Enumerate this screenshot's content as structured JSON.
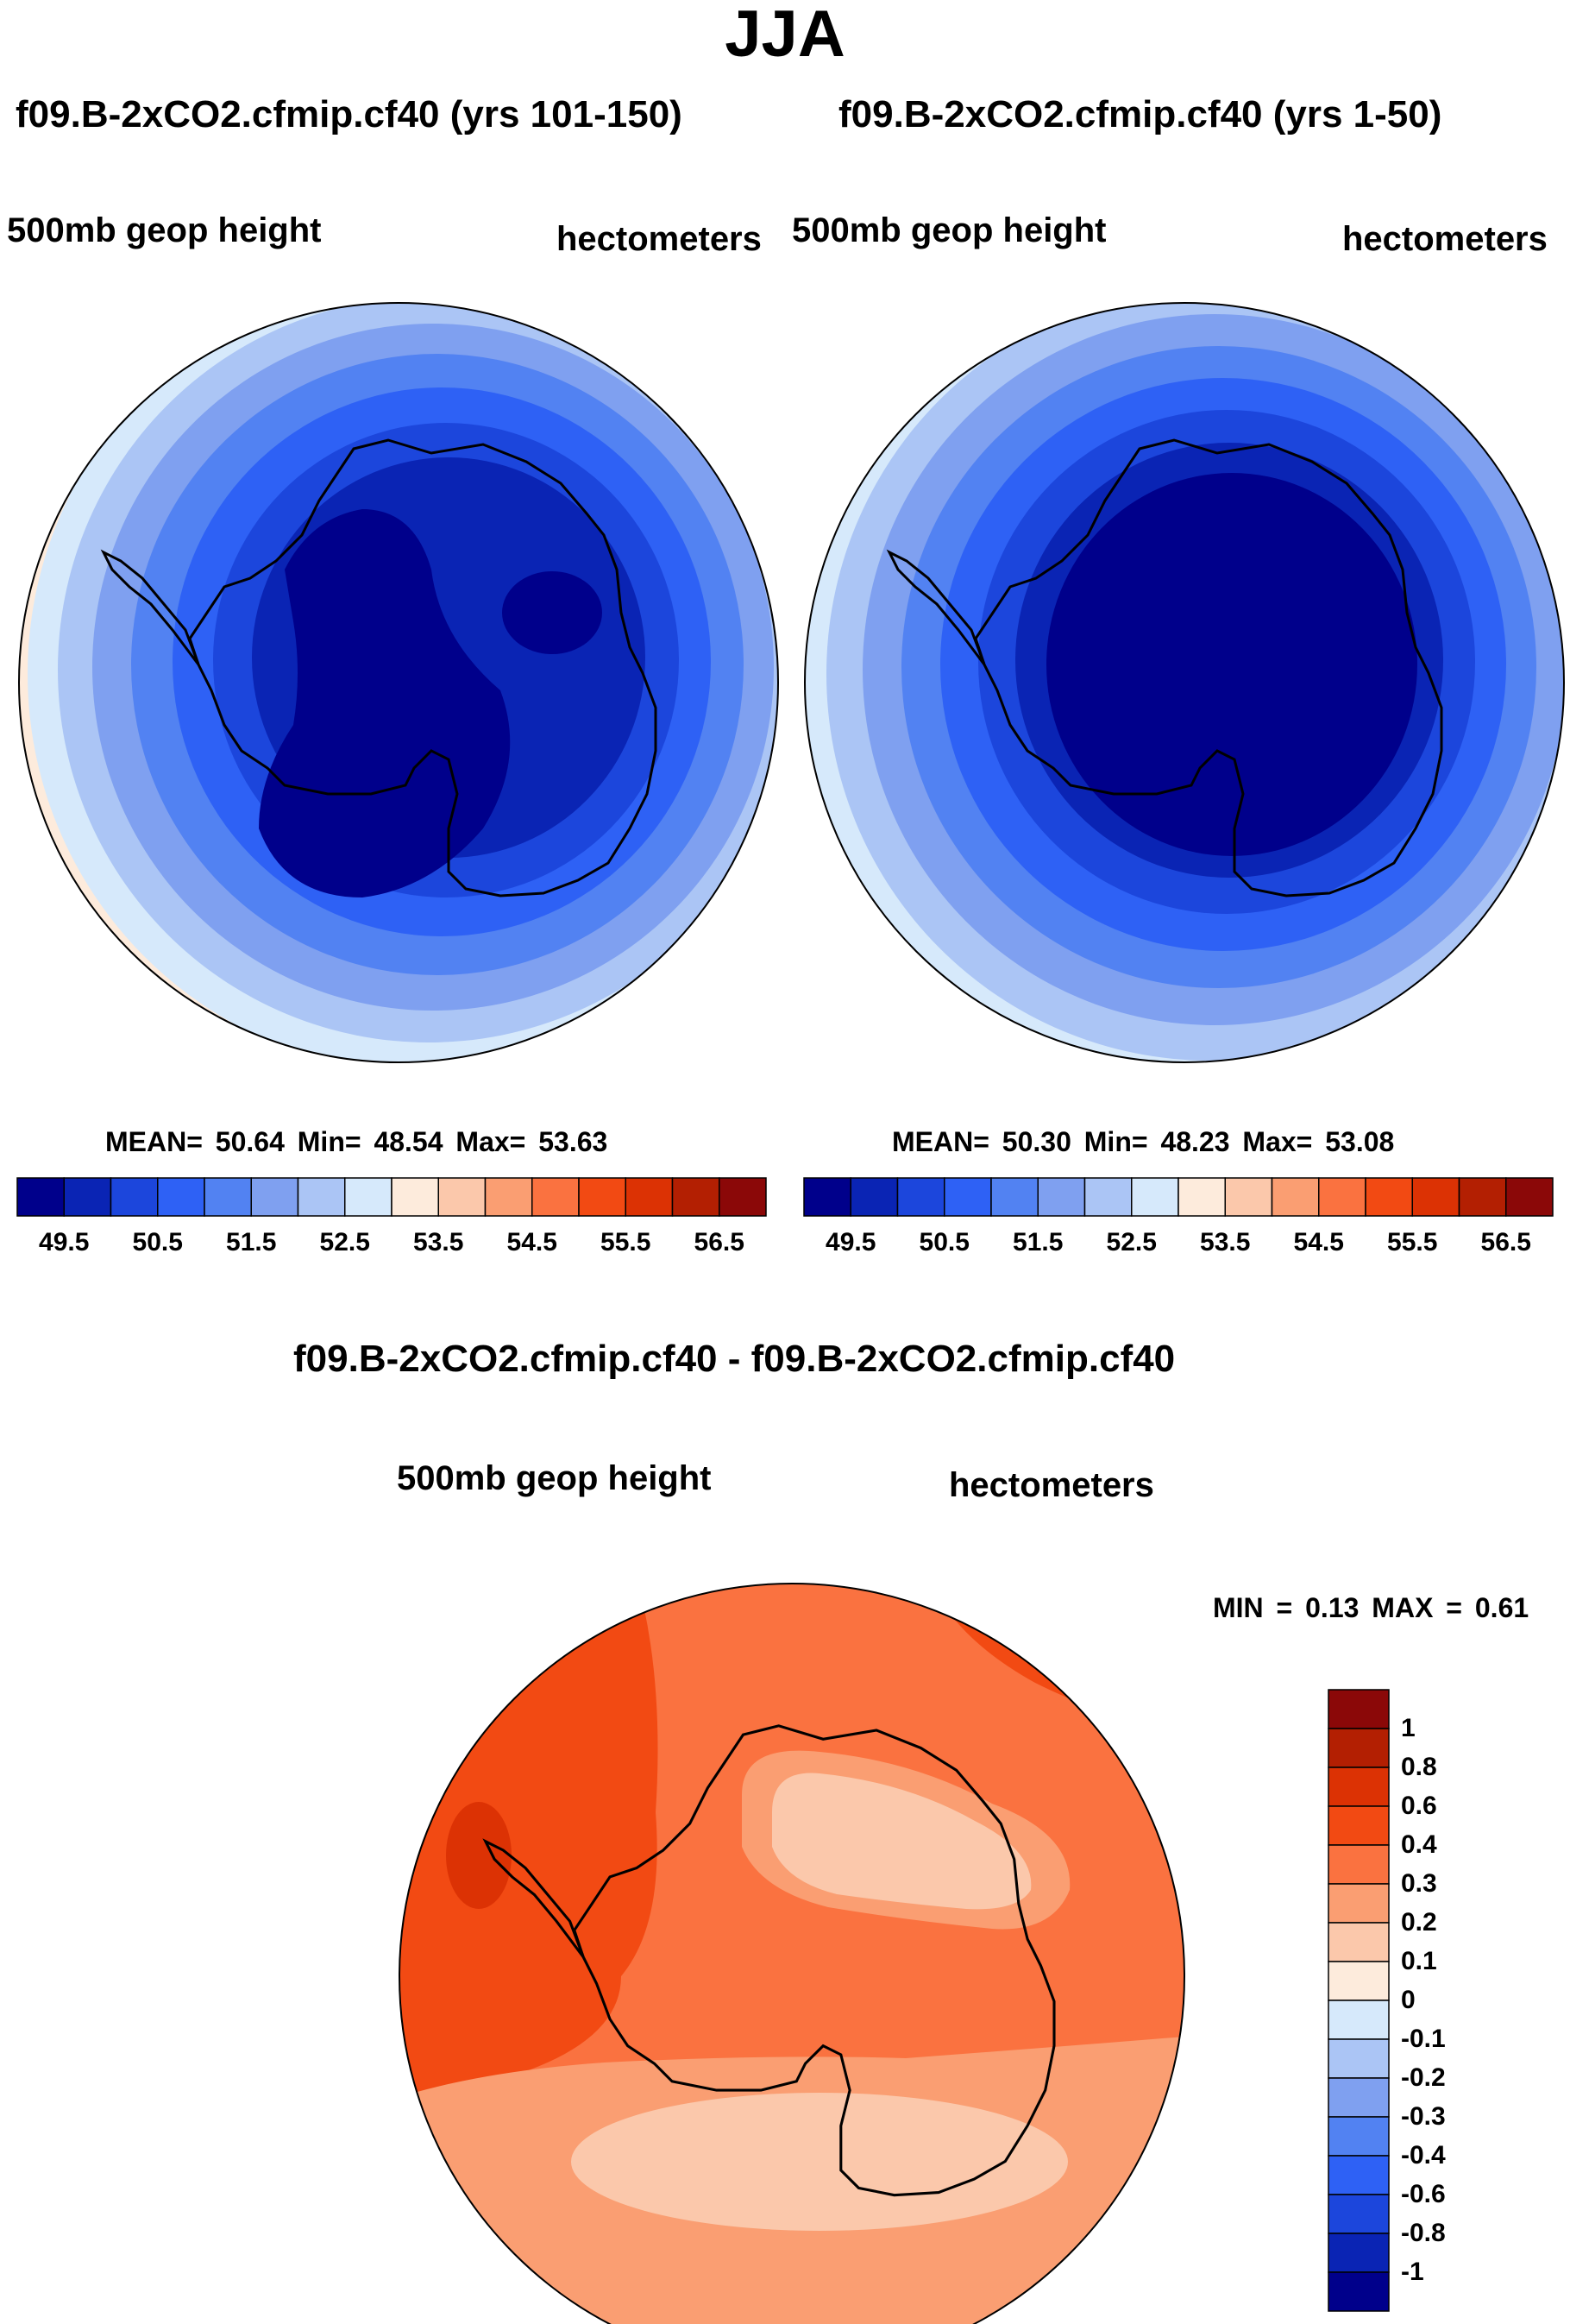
{
  "title": "JJA",
  "panels": [
    {
      "case_title": "f09.B-2xCO2.cfmip.cf40 (yrs 101-150)",
      "field_label": "500mb geop height",
      "units_label": "hectometers",
      "stats": {
        "mean_label": "MEAN=",
        "mean": "50.64",
        "min_label": "Min=",
        "min": "48.54",
        "max_label": "Max=",
        "max": "53.63"
      }
    },
    {
      "case_title": "f09.B-2xCO2.cfmip.cf40 (yrs 1-50)",
      "field_label": "500mb geop height",
      "units_label": "hectometers",
      "stats": {
        "mean_label": "MEAN=",
        "mean": "50.30",
        "min_label": "Min=",
        "min": "48.23",
        "max_label": "Max=",
        "max": "53.08"
      }
    },
    {
      "case_title": "f09.B-2xCO2.cfmip.cf40 - f09.B-2xCO2.cfmip.cf40",
      "field_label": "500mb geop height",
      "units_label": "hectometers",
      "stats": {
        "min_label": "MIN =",
        "min": "0.13",
        "max_label": "MAX =",
        "max": "0.61"
      }
    }
  ],
  "colorbar_fields": {
    "colors": [
      "#00008b",
      "#0a24b4",
      "#1c46dc",
      "#2e61f5",
      "#5282f2",
      "#7fa0f0",
      "#abc5f5",
      "#d6e9fb",
      "#fdebdc",
      "#fbc8ab",
      "#fa9e72",
      "#fa7240",
      "#f24a13",
      "#dc3204",
      "#b31f02",
      "#8b0808"
    ],
    "tick_labels": [
      "49.5",
      "50.5",
      "51.5",
      "52.5",
      "53.5",
      "54.5",
      "55.5",
      "56.5"
    ]
  },
  "colorbar_diff": {
    "colors": [
      "#00008b",
      "#0a24b4",
      "#1c46dc",
      "#2e61f5",
      "#5282f2",
      "#7fa0f0",
      "#abc5f5",
      "#d6e9fb",
      "#fdebdc",
      "#fbc8ab",
      "#fa9e72",
      "#fa7240",
      "#f24a13",
      "#dc3204",
      "#b31f02",
      "#8b0808"
    ],
    "tick_labels": [
      "1",
      "0.8",
      "0.6",
      "0.4",
      "0.3",
      "0.2",
      "0.1",
      "0",
      "-0.1",
      "-0.2",
      "-0.3",
      "-0.4",
      "-0.6",
      "-0.8",
      "-1"
    ]
  }
}
